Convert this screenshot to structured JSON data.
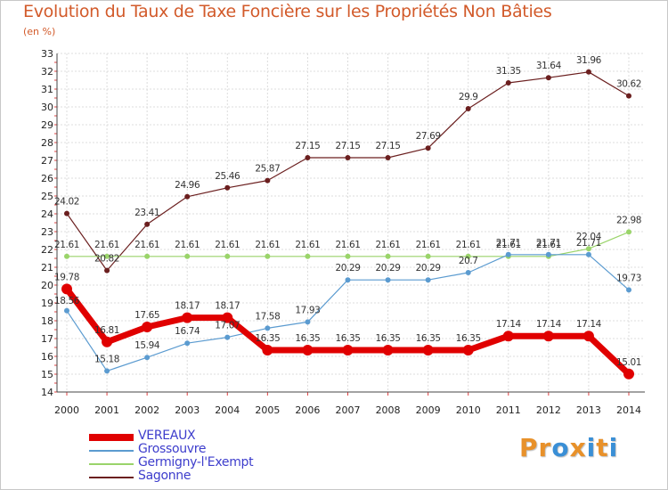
{
  "title": "Evolution du Taux de Taxe Foncière sur les Propriétés Non Bâties",
  "subtitle": "(en %)",
  "logo": {
    "text": "Proxiti",
    "colors": [
      "#e8912a",
      "#e8912a",
      "#3a8fd6",
      "#e8912a",
      "#3a8fd6",
      "#e8912a",
      "#3a8fd6"
    ]
  },
  "chart_data": {
    "type": "line",
    "title": "Evolution du Taux de Taxe Foncière sur les Propriétés Non Bâties",
    "ylabel": "(en %)",
    "x": [
      2000,
      2001,
      2002,
      2003,
      2004,
      2005,
      2006,
      2007,
      2008,
      2009,
      2010,
      2011,
      2012,
      2013,
      2014
    ],
    "ylim": [
      14,
      33
    ],
    "yticks": [
      14,
      15,
      16,
      17,
      18,
      19,
      20,
      21,
      22,
      23,
      24,
      25,
      26,
      27,
      28,
      29,
      30,
      31,
      32,
      33
    ],
    "grid": true,
    "legend": "bottom-left",
    "series": [
      {
        "name": "VEREAUX",
        "color": "#e00000",
        "values": [
          19.78,
          16.81,
          17.65,
          18.17,
          18.17,
          16.35,
          16.35,
          16.35,
          16.35,
          16.35,
          16.35,
          17.14,
          17.14,
          17.14,
          15.01
        ],
        "labels": [
          "19.78",
          "16.81",
          "17.65",
          "18.17",
          "18.17",
          "16.35",
          "16.35",
          "16.35",
          "16.35",
          "16.35",
          "16.35",
          "17.14",
          "17.14",
          "17.14",
          "15.01"
        ]
      },
      {
        "name": "Grossouvre",
        "color": "#5b9bd0",
        "values": [
          18.56,
          15.18,
          15.94,
          16.74,
          17.07,
          17.58,
          17.93,
          20.29,
          20.29,
          20.29,
          20.7,
          21.71,
          21.71,
          21.71,
          19.73
        ],
        "labels": [
          "18.56",
          "15.18",
          "15.94",
          "16.74",
          "17.07",
          "17.58",
          "17.93",
          "20.29",
          "20.29",
          "20.29",
          "20.7",
          "21.71",
          "21.71",
          "21.71",
          "19.73"
        ]
      },
      {
        "name": "Germigny-l'Exempt",
        "color": "#9ad46a",
        "values": [
          21.61,
          21.61,
          21.61,
          21.61,
          21.61,
          21.61,
          21.61,
          21.61,
          21.61,
          21.61,
          21.61,
          21.61,
          21.61,
          22.04,
          22.98
        ],
        "labels": [
          "21.61",
          "21.61",
          "21.61",
          "21.61",
          "21.61",
          "21.61",
          "21.61",
          "21.61",
          "21.61",
          "21.61",
          "21.61",
          "21.61",
          "21.61",
          "22.04",
          "22.98"
        ]
      },
      {
        "name": "Sagonne",
        "color": "#6b1f1f",
        "values": [
          24.02,
          20.82,
          23.41,
          24.96,
          25.46,
          25.87,
          27.15,
          27.15,
          27.15,
          27.69,
          29.9,
          31.35,
          31.64,
          31.96,
          30.62
        ],
        "labels": [
          "24.02",
          "20.82",
          "23.41",
          "24.96",
          "25.46",
          "25.87",
          "27.15",
          "27.15",
          "27.15",
          "27.69",
          "29.9",
          "31.35",
          "31.64",
          "31.96",
          "30.62"
        ]
      }
    ]
  }
}
